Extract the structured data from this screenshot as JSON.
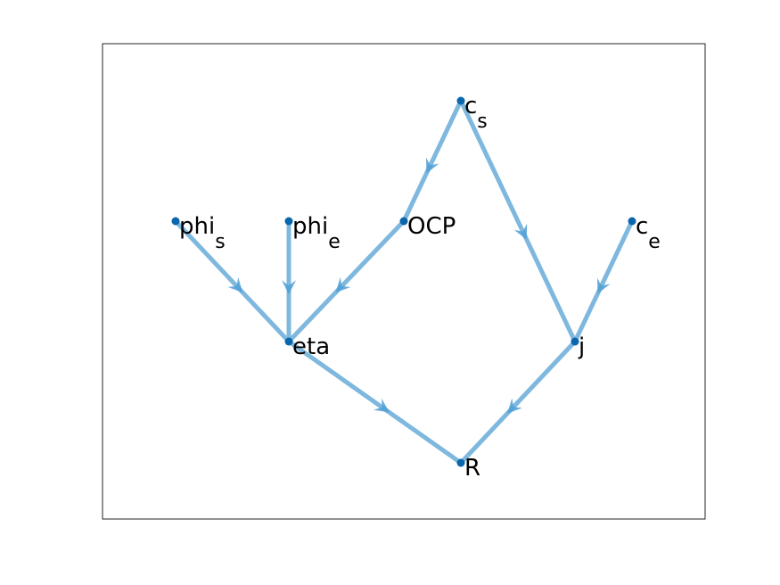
{
  "graph": {
    "edge_color": "#7fb8de",
    "arrow_color": "#4f9fd6",
    "node_color": "#0a67ad",
    "frame_color": "#262626",
    "nodes": [
      {
        "id": "c_s",
        "base": "c",
        "sub": "s"
      },
      {
        "id": "phi_s",
        "base": "phi",
        "sub": "s"
      },
      {
        "id": "phi_e",
        "base": "phi",
        "sub": "e"
      },
      {
        "id": "OCP",
        "base": "OCP",
        "sub": ""
      },
      {
        "id": "c_e",
        "base": "c",
        "sub": "e"
      },
      {
        "id": "eta",
        "base": "eta",
        "sub": ""
      },
      {
        "id": "j",
        "base": "j",
        "sub": ""
      },
      {
        "id": "R",
        "base": "R",
        "sub": ""
      }
    ],
    "edges": [
      {
        "from": "c_s",
        "to": "OCP"
      },
      {
        "from": "c_s",
        "to": "j"
      },
      {
        "from": "phi_s",
        "to": "eta"
      },
      {
        "from": "phi_e",
        "to": "eta"
      },
      {
        "from": "OCP",
        "to": "eta"
      },
      {
        "from": "c_e",
        "to": "j"
      },
      {
        "from": "eta",
        "to": "R"
      },
      {
        "from": "j",
        "to": "R"
      }
    ]
  }
}
